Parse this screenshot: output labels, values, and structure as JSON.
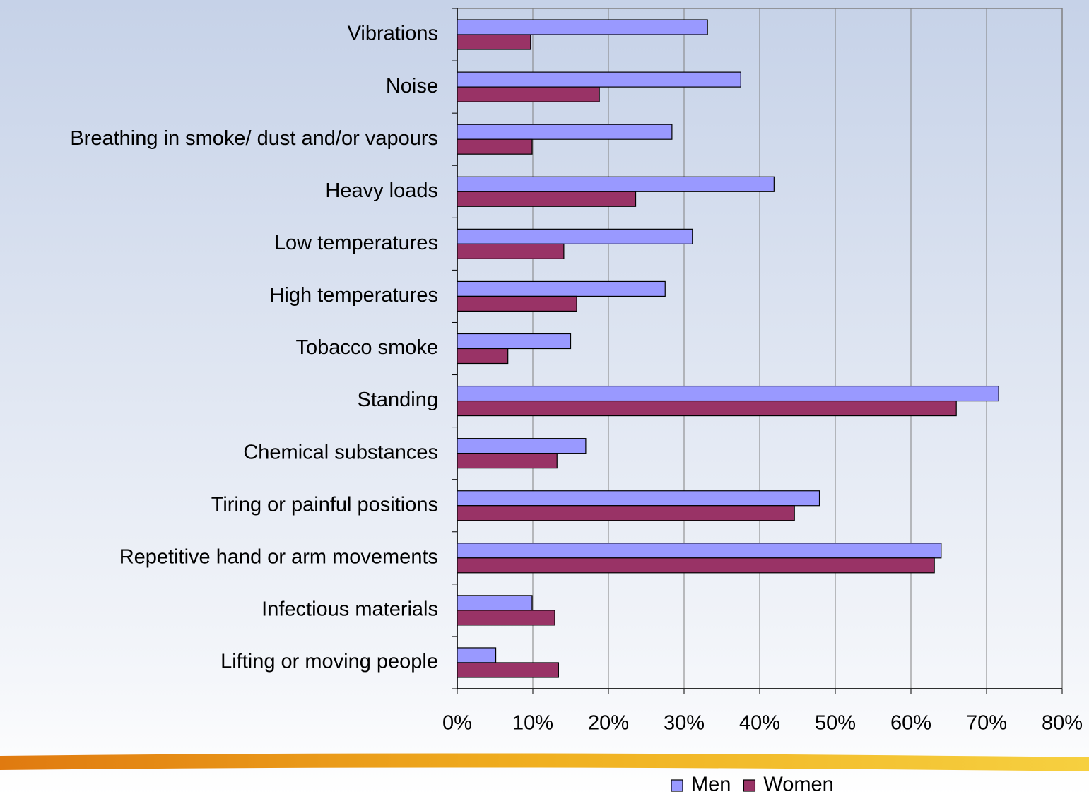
{
  "chart_data": {
    "type": "hbar",
    "categories": [
      "Vibrations",
      "Noise",
      "Breathing in smoke/ dust and/or vapours",
      "Heavy loads",
      "Low temperatures",
      "High temperatures",
      "Tobacco smoke",
      "Standing",
      "Chemical substances",
      "Tiring or painful positions",
      "Repetitive hand or arm movements",
      "Infectious materials",
      "Lifting or moving people"
    ],
    "series": [
      {
        "name": "Men",
        "color": "#9999ff",
        "values": [
          33.1,
          37.5,
          28.4,
          41.9,
          31.1,
          27.5,
          15.0,
          71.6,
          17.0,
          47.9,
          64.0,
          9.9,
          5.1
        ]
      },
      {
        "name": "Women",
        "color": "#993366",
        "values": [
          9.7,
          18.8,
          9.9,
          23.6,
          14.1,
          15.8,
          6.7,
          66.0,
          13.2,
          44.6,
          63.1,
          12.9,
          13.4
        ]
      }
    ],
    "xlim": [
      0,
      80
    ],
    "xticks": [
      {
        "value": 0,
        "label": "0%"
      },
      {
        "value": 10,
        "label": "10%"
      },
      {
        "value": 20,
        "label": "20%"
      },
      {
        "value": 30,
        "label": "30%"
      },
      {
        "value": 40,
        "label": "40%"
      },
      {
        "value": 50,
        "label": "50%"
      },
      {
        "value": 60,
        "label": "60%"
      },
      {
        "value": 70,
        "label": "70%"
      },
      {
        "value": 80,
        "label": "80%"
      }
    ],
    "grid": true,
    "legend": "bottom"
  }
}
